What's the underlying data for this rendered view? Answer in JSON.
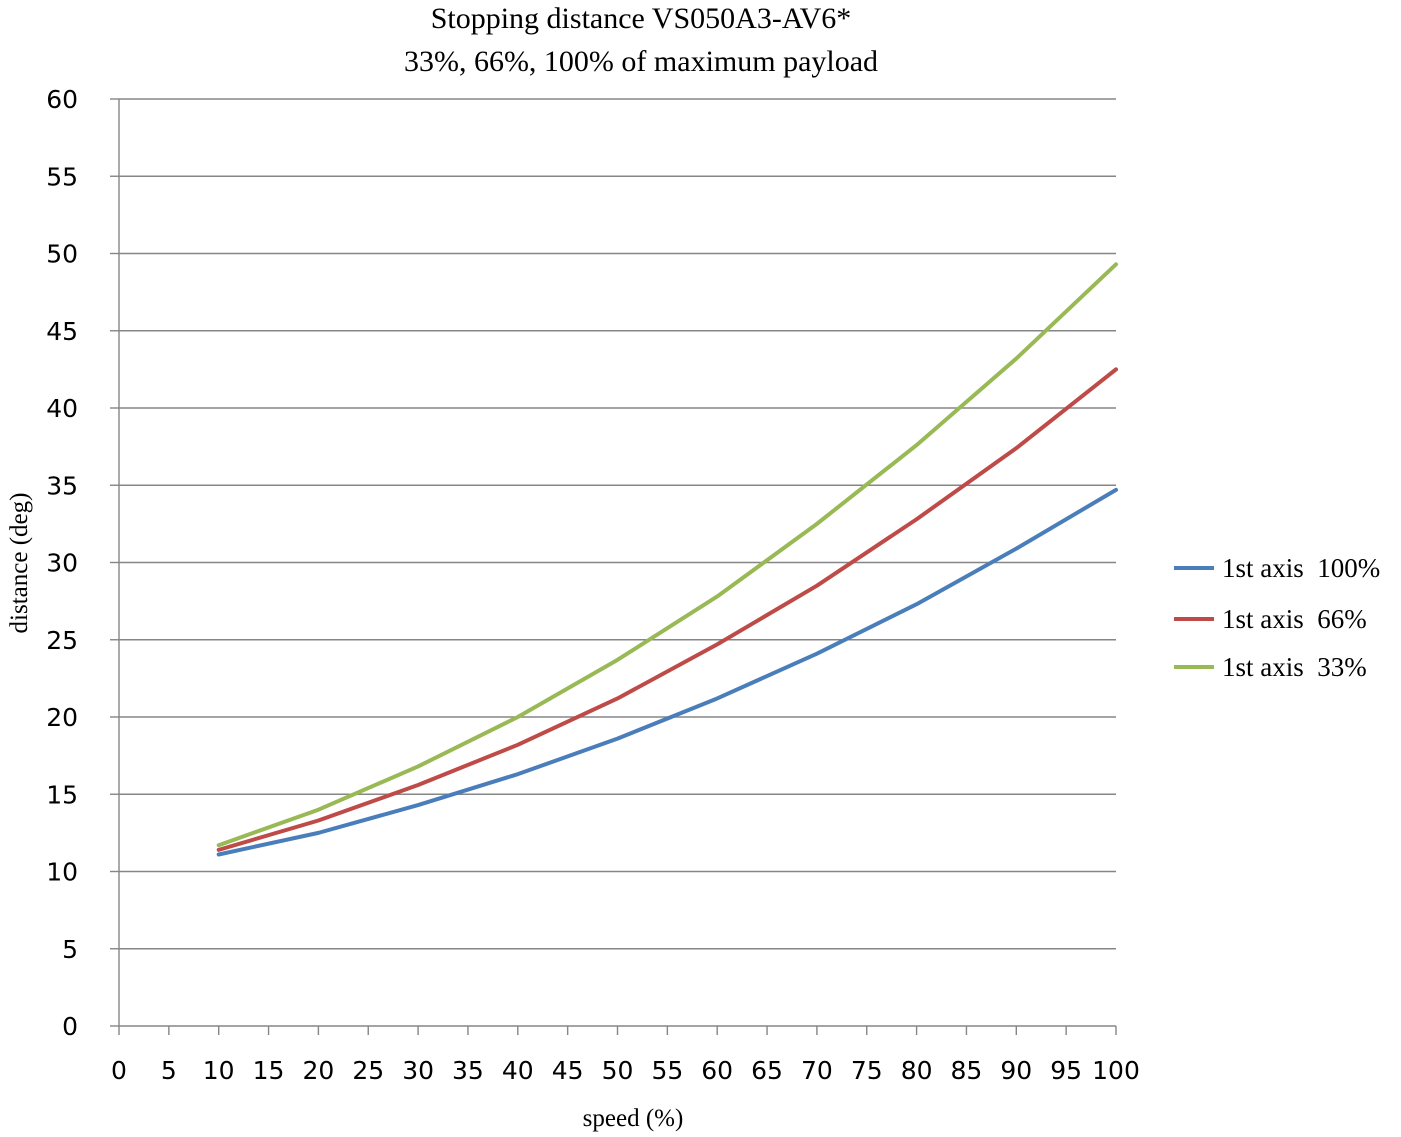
{
  "chart_data": {
    "type": "line",
    "title": "Stopping distance VS050A3-AV6*",
    "subtitle": "33%, 66%, 100% of maximum payload",
    "xlabel": "speed (%)",
    "ylabel": "distance (deg)",
    "xlim": [
      0,
      100
    ],
    "ylim": [
      0,
      60
    ],
    "x_ticks": [
      "0",
      "5",
      "10",
      "15",
      "20",
      "25",
      "30",
      "35",
      "40",
      "45",
      "50",
      "55",
      "60",
      "65",
      "70",
      "75",
      "80",
      "85",
      "90",
      "95",
      "100"
    ],
    "y_ticks": [
      "0",
      "5",
      "10",
      "15",
      "20",
      "25",
      "30",
      "35",
      "40",
      "45",
      "50",
      "55",
      "60"
    ],
    "grid": true,
    "legend_position": "right",
    "x": [
      10,
      20,
      30,
      40,
      50,
      60,
      70,
      80,
      90,
      100
    ],
    "series": [
      {
        "name": "1st axis  100%",
        "color": "#4A7EBB",
        "values": [
          11.1,
          12.5,
          14.3,
          16.3,
          18.6,
          21.2,
          24.1,
          27.3,
          30.9,
          34.7
        ]
      },
      {
        "name": "1st axis  66%",
        "color": "#BE4B48",
        "values": [
          11.4,
          13.3,
          15.6,
          18.2,
          21.2,
          24.7,
          28.5,
          32.8,
          37.4,
          42.5
        ]
      },
      {
        "name": "1st axis  33%",
        "color": "#98B954",
        "values": [
          11.7,
          14.0,
          16.8,
          20.0,
          23.7,
          27.8,
          32.5,
          37.6,
          43.2,
          49.3
        ]
      }
    ]
  }
}
